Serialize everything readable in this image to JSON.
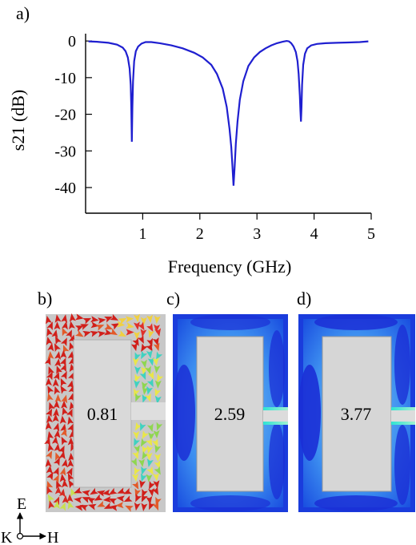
{
  "panels": {
    "a": "a)",
    "b": "b)",
    "c": "c)",
    "d": "d)"
  },
  "chart_data": {
    "type": "line",
    "xlabel": "Frequency (GHz)",
    "ylabel": "s21 (dB)",
    "xlim": [
      0,
      5
    ],
    "ylim": [
      -47,
      2
    ],
    "xticks": [
      1,
      2,
      3,
      4,
      5
    ],
    "yticks": [
      0,
      -10,
      -20,
      -30,
      -40
    ],
    "grid": false,
    "series": [
      {
        "color": "#1f1fd0",
        "x": [
          0.05,
          0.2,
          0.4,
          0.55,
          0.65,
          0.7,
          0.74,
          0.77,
          0.79,
          0.8,
          0.81,
          0.82,
          0.83,
          0.85,
          0.88,
          0.92,
          0.98,
          1.05,
          1.15,
          1.3,
          1.5,
          1.7,
          1.9,
          2.05,
          2.2,
          2.3,
          2.4,
          2.47,
          2.52,
          2.55,
          2.57,
          2.59,
          2.61,
          2.63,
          2.66,
          2.7,
          2.76,
          2.85,
          2.95,
          3.05,
          3.15,
          3.25,
          3.35,
          3.45,
          3.52,
          3.56,
          3.6,
          3.64,
          3.68,
          3.71,
          3.73,
          3.75,
          3.76,
          3.77,
          3.78,
          3.79,
          3.81,
          3.84,
          3.88,
          3.95,
          4.05,
          4.2,
          4.4,
          4.6,
          4.8,
          4.95
        ],
        "y": [
          -0.1,
          -0.2,
          -0.5,
          -1.0,
          -1.8,
          -2.8,
          -4.5,
          -7.5,
          -12,
          -18,
          -27.5,
          -18,
          -11,
          -5.5,
          -2.8,
          -1.5,
          -0.7,
          -0.3,
          -0.3,
          -0.6,
          -1.2,
          -2.0,
          -3.2,
          -4.5,
          -6.5,
          -9.0,
          -13,
          -18,
          -24,
          -29,
          -34,
          -39.5,
          -34,
          -28,
          -22,
          -16,
          -11,
          -6.8,
          -4.5,
          -3.0,
          -2.0,
          -1.2,
          -0.6,
          -0.2,
          0.0,
          -0.1,
          -0.6,
          -1.5,
          -3.0,
          -5.5,
          -9,
          -15,
          -19,
          -22.0,
          -18,
          -12,
          -6.5,
          -3.5,
          -2.0,
          -1.2,
          -0.8,
          -0.6,
          -0.5,
          -0.4,
          -0.3,
          -0.1
        ]
      }
    ]
  },
  "field_maps": [
    {
      "panel": "b",
      "frequency_label": "0.81"
    },
    {
      "panel": "c",
      "frequency_label": "2.59"
    },
    {
      "panel": "d",
      "frequency_label": "3.77"
    }
  ],
  "axes_legend": {
    "e_label": "E",
    "k_label": "K",
    "h_label": "H"
  }
}
